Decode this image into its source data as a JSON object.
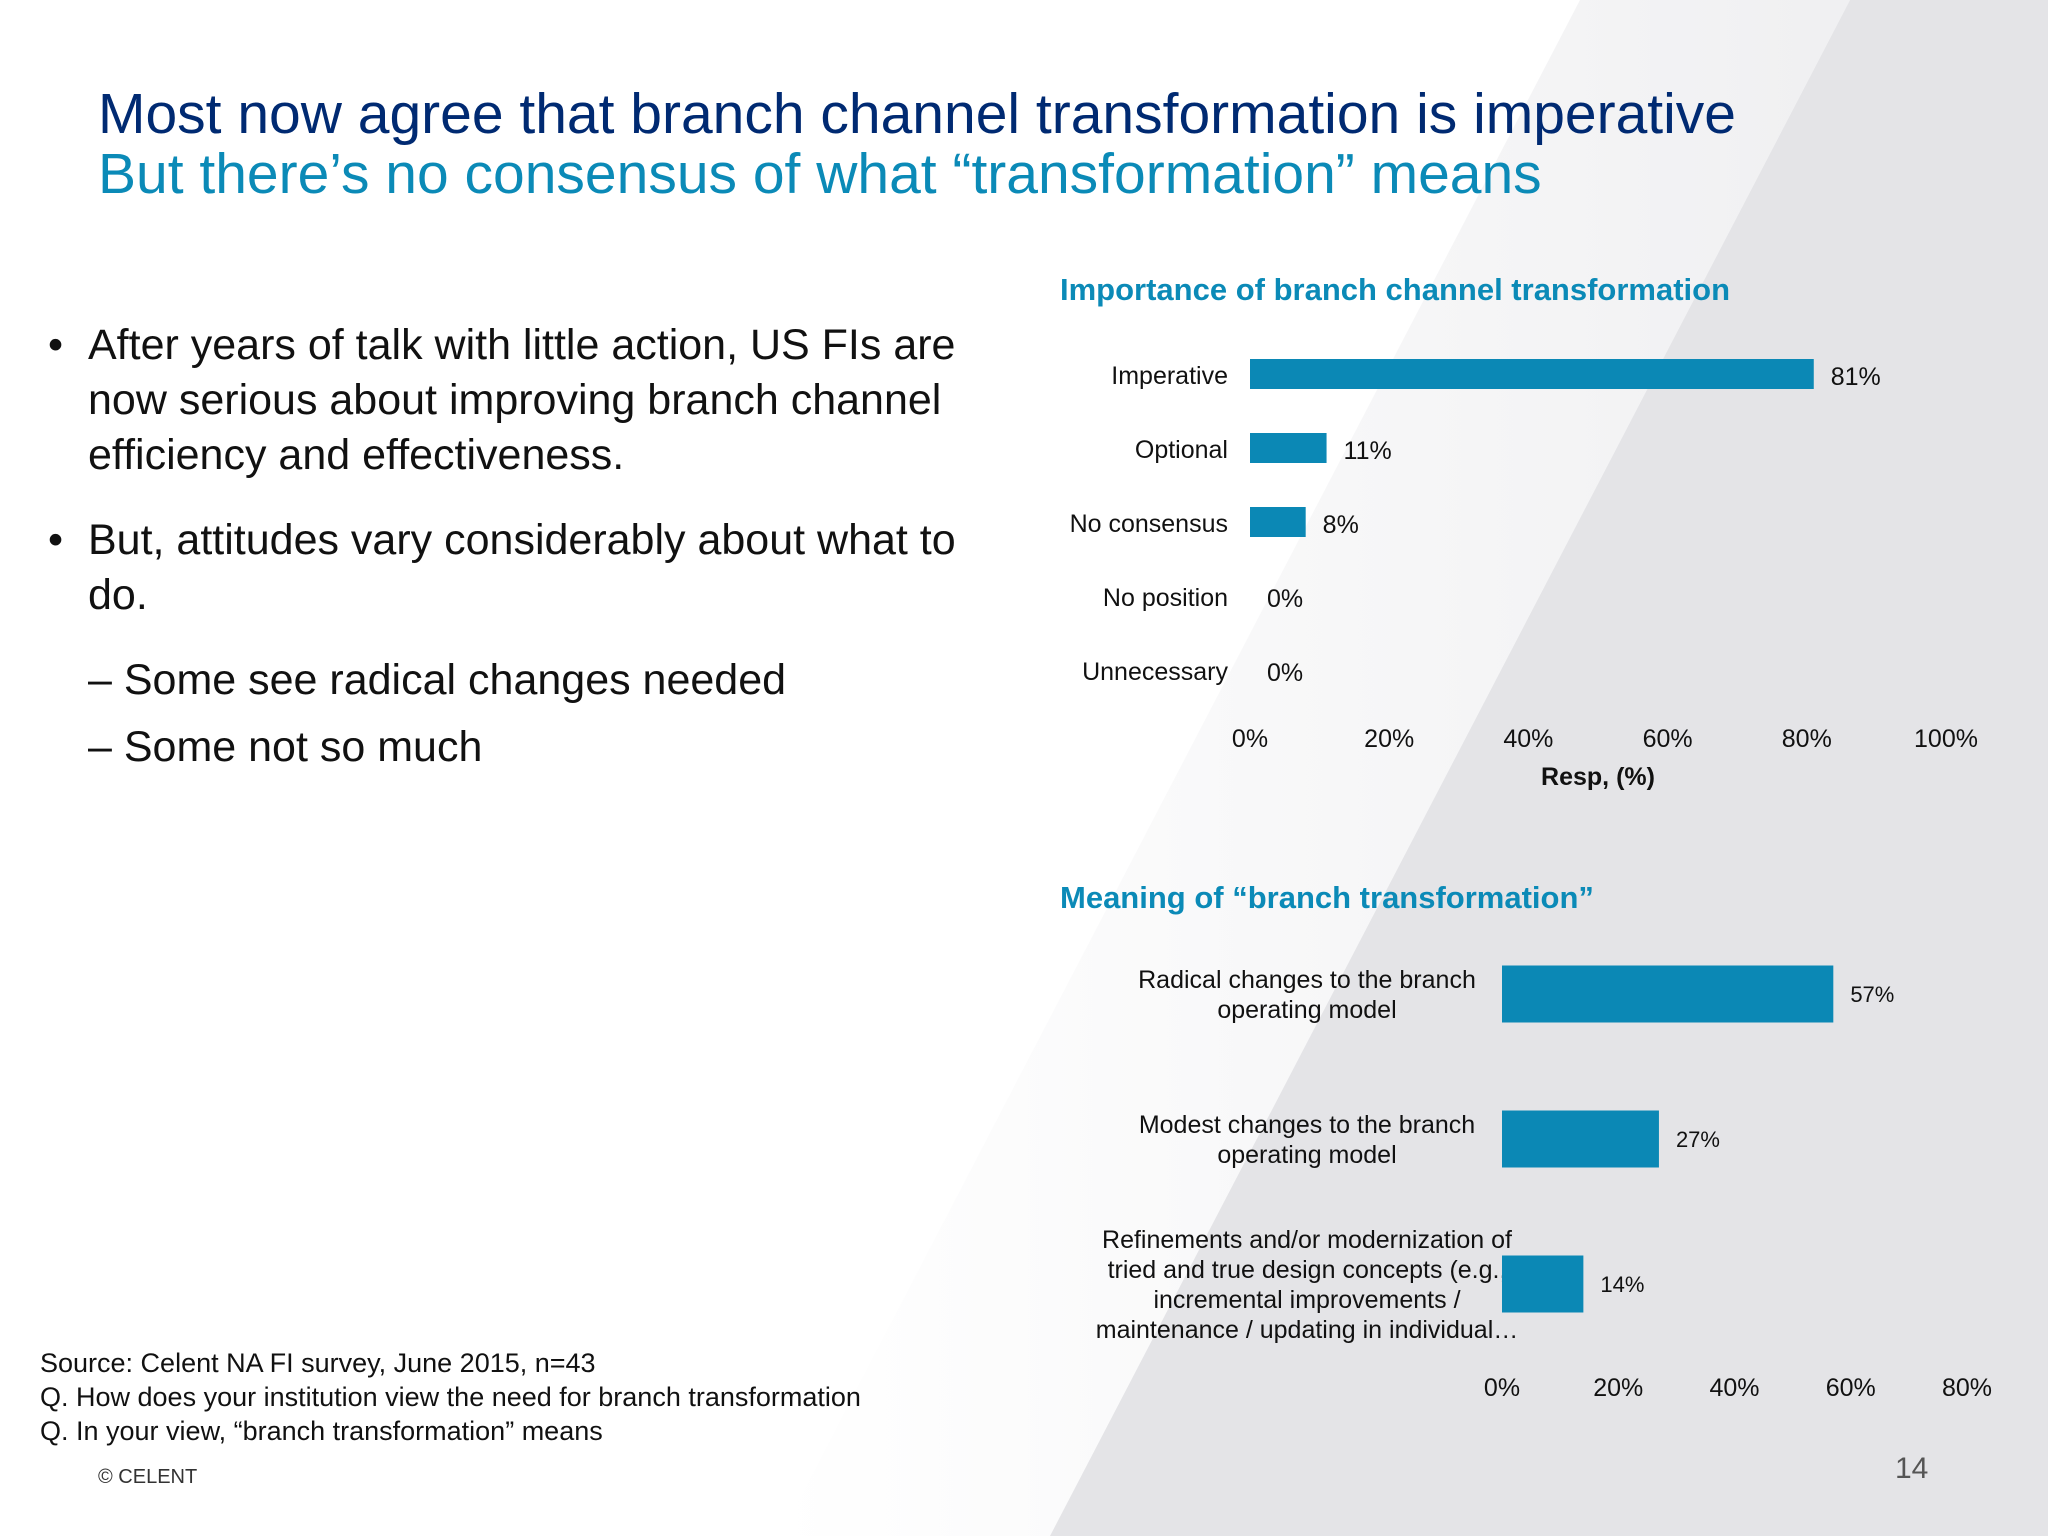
{
  "slide": {
    "title": "Most now agree that branch channel transformation is imperative",
    "subtitle": "But there’s no consensus of what “transformation” means",
    "page_number": "14",
    "copyright": "© CELENT",
    "accent_dark": "#002a72",
    "accent_teal": "#0b8ab7",
    "bar_color": "#0b88b5"
  },
  "bullets": {
    "marker": "•",
    "b1": "After years of talk with little action, US FIs are now serious about improving branch channel efficiency and effectiveness.",
    "b2": "But, attitudes vary considerably about what to do.",
    "sub1": "– Some see radical changes needed",
    "sub2": "– Some not so much"
  },
  "source": {
    "line1": "Source: Celent NA FI survey, June 2015, n=43",
    "line2": "Q. How does your institution view the need for branch transformation",
    "line3": "Q. In your view, “branch transformation” means"
  },
  "chart_data": [
    {
      "type": "bar",
      "orientation": "horizontal",
      "title": "Importance of branch channel transformation",
      "categories": [
        "Imperative",
        "Optional",
        "No consensus",
        "No position",
        "Unnecessary"
      ],
      "values": [
        81,
        11,
        8,
        0,
        0
      ],
      "value_labels": [
        "81%",
        "11%",
        "8%",
        "0%",
        "0%"
      ],
      "xlabel": "Resp, (%)",
      "xlim": [
        0,
        100
      ],
      "xticks": [
        "0%",
        "20%",
        "40%",
        "60%",
        "80%",
        "100%"
      ],
      "grid": false,
      "legend": "none"
    },
    {
      "type": "bar",
      "orientation": "horizontal",
      "title": "Meaning of “branch transformation”",
      "categories": [
        [
          "Radical changes to the branch",
          "operating model"
        ],
        [
          "Modest changes to the branch",
          "operating model"
        ],
        [
          "Refinements and/or modernization of",
          "tried and true design concepts (e.g.,",
          "incremental improvements /",
          "maintenance / updating in individual…"
        ]
      ],
      "values": [
        57,
        27,
        14
      ],
      "value_labels": [
        "57%",
        "27%",
        "14%"
      ],
      "xlim": [
        0,
        80
      ],
      "xticks": [
        "0%",
        "20%",
        "40%",
        "60%",
        "80%"
      ],
      "grid": false,
      "legend": "none"
    }
  ]
}
